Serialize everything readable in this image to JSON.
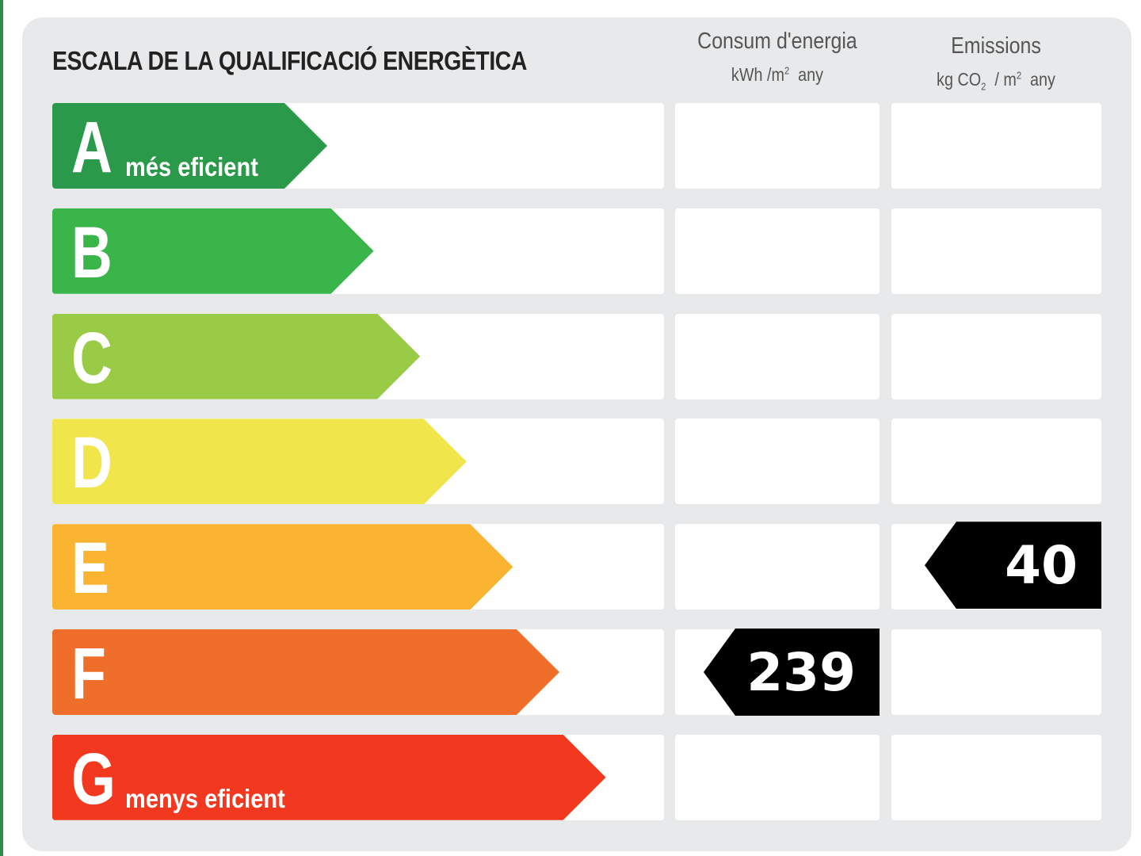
{
  "title": "ESCALA DE LA QUALIFICACIÓ ENERGÈTICA",
  "columns": {
    "energy": {
      "title": "Consum d'energia",
      "unit_prefix": "kWh /m",
      "unit_exp": "2",
      "unit_suffix": "any"
    },
    "emissions": {
      "title": "Emissions",
      "unit_prefix": "kg CO",
      "unit_sub": "2",
      "unit_mid": "/ m",
      "unit_exp": "2",
      "unit_suffix": "any"
    }
  },
  "ratings": [
    {
      "letter": "A",
      "label": "més eficient",
      "color": "#2a9a4a"
    },
    {
      "letter": "B",
      "label": "",
      "color": "#3ab54a"
    },
    {
      "letter": "C",
      "label": "",
      "color": "#99cb47"
    },
    {
      "letter": "D",
      "label": "",
      "color": "#f0e54a"
    },
    {
      "letter": "E",
      "label": "",
      "color": "#fbb332"
    },
    {
      "letter": "F",
      "label": "",
      "color": "#ef6f2a"
    },
    {
      "letter": "G",
      "label": "menys eficient",
      "color": "#f2391f"
    }
  ],
  "result": {
    "energy": {
      "value": "239",
      "rating": "F"
    },
    "emissions": {
      "value": "40",
      "rating": "E"
    }
  }
}
